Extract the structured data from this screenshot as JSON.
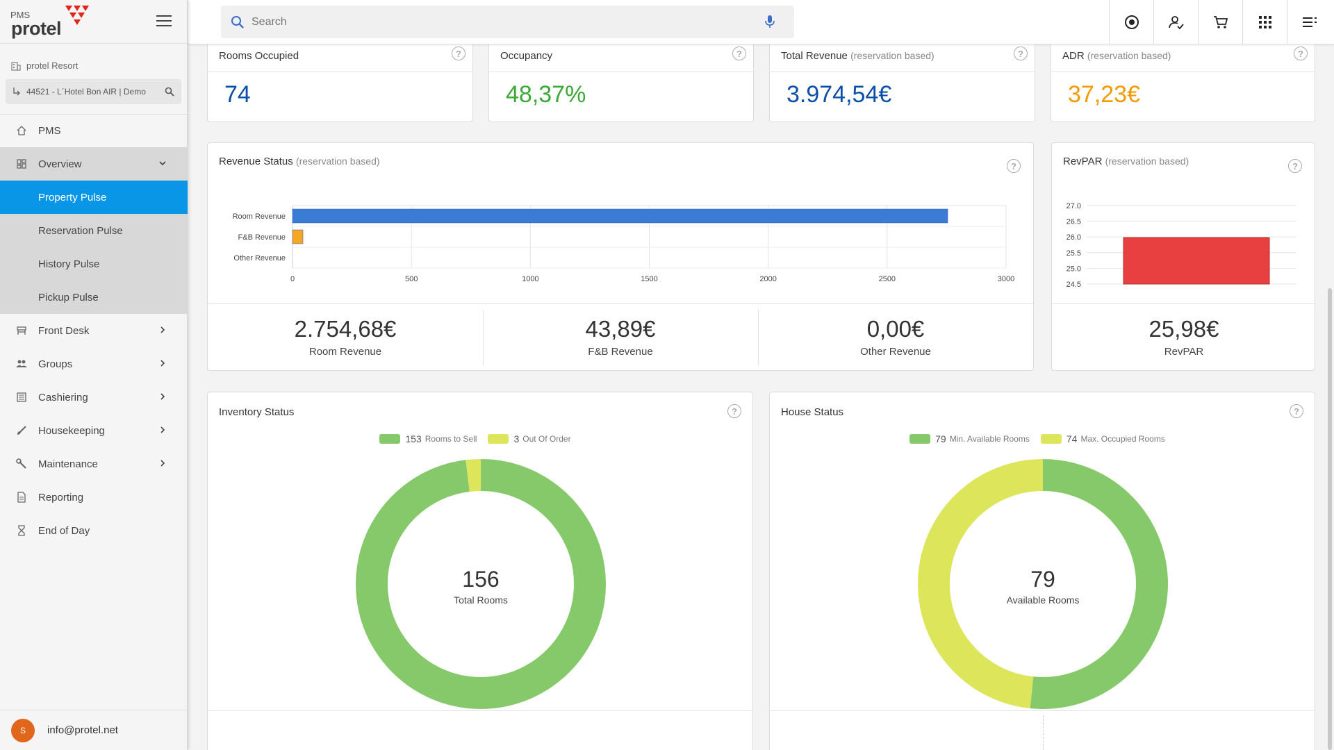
{
  "brand": {
    "product": "PMS",
    "name": "protel"
  },
  "property": {
    "group": "protel Resort",
    "hotel": "44521 - L´Hotel  Bon AIR | Demo"
  },
  "nav": {
    "pms": "PMS",
    "overview": "Overview",
    "property_pulse": "Property Pulse",
    "reservation_pulse": "Reservation Pulse",
    "history_pulse": "History Pulse",
    "pickup_pulse": "Pickup Pulse",
    "front_desk": "Front Desk",
    "groups": "Groups",
    "cashiering": "Cashiering",
    "housekeeping": "Housekeeping",
    "maintenance": "Maintenance",
    "reporting": "Reporting",
    "end_of_day": "End of Day"
  },
  "user": {
    "initial": "S",
    "email": "info@protel.net"
  },
  "search": {
    "placeholder": "Search"
  },
  "kpis": {
    "rooms_occupied": {
      "title": "Rooms Occupied",
      "value": "74",
      "color": "#0b4fa8"
    },
    "occupancy": {
      "title": "Occupancy",
      "value": "48,37%",
      "color": "#3aaa35"
    },
    "total_revenue": {
      "title": "Total Revenue",
      "qualifier": "(reservation based)",
      "value": "3.974,54€",
      "color": "#0b4fa8"
    },
    "adr": {
      "title": "ADR",
      "qualifier": "(reservation based)",
      "value": "37,23€",
      "color": "#f29a00"
    }
  },
  "revenue_status": {
    "title": "Revenue Status",
    "qualifier": "(reservation based)",
    "summary": [
      {
        "value": "2.754,68€",
        "label": "Room Revenue"
      },
      {
        "value": "43,89€",
        "label": "F&B Revenue"
      },
      {
        "value": "0,00€",
        "label": "Other Revenue"
      }
    ]
  },
  "revpar": {
    "title": "RevPAR",
    "qualifier": "(reservation based)",
    "value": "25,98€",
    "label": "RevPAR"
  },
  "inventory": {
    "title": "Inventory Status",
    "center_value": "156",
    "center_label": "Total Rooms"
  },
  "house": {
    "title": "House Status",
    "center_value": "79",
    "center_label": "Available Rooms"
  },
  "help_glyph": "?",
  "chart_data": [
    {
      "type": "bar",
      "orientation": "horizontal",
      "categories": [
        "Room Revenue",
        "F&B Revenue",
        "Other Revenue"
      ],
      "values": [
        2754.68,
        43.89,
        0
      ],
      "colors": [
        "#3a7bd5",
        "#f5a623",
        "#9e9e9e"
      ],
      "xlim": [
        0,
        3000
      ],
      "xticks": [
        "0",
        "500",
        "1000",
        "1500",
        "2000",
        "2500",
        "3000"
      ],
      "grid": true
    },
    {
      "type": "bar",
      "categories": [
        "RevPAR"
      ],
      "values": [
        25.98
      ],
      "colors": [
        "#e84040"
      ],
      "ylim": [
        24.5,
        27.0
      ],
      "yticks": [
        "27.0",
        "26.5",
        "26.0",
        "25.5",
        "25.0",
        "24.5"
      ],
      "grid": true
    },
    {
      "type": "pie",
      "style": "donut",
      "labels": [
        "Rooms to Sell",
        "Out Of Order"
      ],
      "values": [
        153,
        3
      ],
      "colors": [
        "#86c96a",
        "#dde55a"
      ],
      "legend": "top"
    },
    {
      "type": "pie",
      "style": "donut",
      "labels": [
        "Min. Available Rooms",
        "Max. Occupied Rooms"
      ],
      "values": [
        79,
        74
      ],
      "colors": [
        "#86c96a",
        "#dde55a"
      ],
      "legend": "top"
    }
  ]
}
